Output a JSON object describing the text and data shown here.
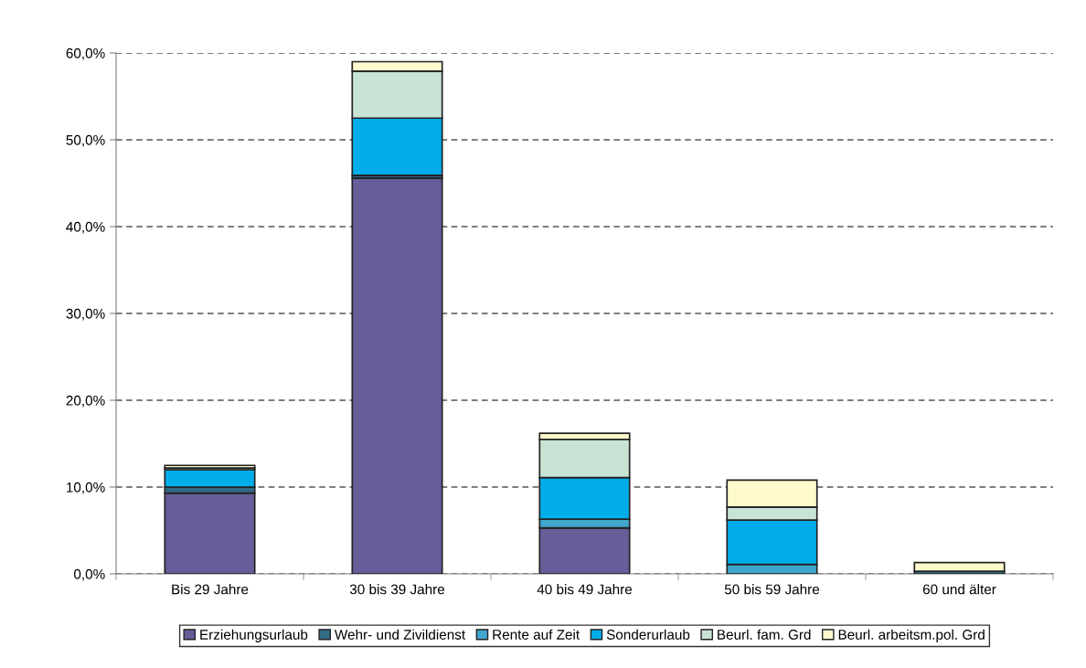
{
  "chart_data": {
    "type": "bar",
    "stacked": true,
    "categories": [
      "Bis 29 Jahre",
      "30 bis 39 Jahre",
      "40 bis 49 Jahre",
      "50 bis 59 Jahre",
      "60 und älter"
    ],
    "series": [
      {
        "name": "Erziehungsurlaub",
        "color": "#665e99",
        "values": [
          9.3,
          45.6,
          5.3,
          0,
          0
        ]
      },
      {
        "name": "Wehr- und Zivildienst",
        "color": "#336b87",
        "values": [
          0.7,
          0.3,
          0,
          null,
          0.3
        ]
      },
      {
        "name": "Rente auf Zeit",
        "color": "#3fa6cc",
        "values": [
          0,
          0,
          1.0,
          1.1,
          0
        ]
      },
      {
        "name": "Sonderurlaub",
        "color": "#00adea",
        "values": [
          2.0,
          6.6,
          4.8,
          5.1,
          0
        ]
      },
      {
        "name": "Beurl. fam. Grd",
        "color": "#c8e4d4",
        "values": [
          0.2,
          5.4,
          4.4,
          1.5,
          0
        ]
      },
      {
        "name": "Beurl. arbeitsm.pol. Grd",
        "color": "#fffacc",
        "values": [
          0.3,
          1.1,
          0.7,
          3.1,
          1.0
        ]
      }
    ],
    "ylim": [
      0,
      60
    ],
    "yticks": [
      {
        "value": 0,
        "label": "0,0%"
      },
      {
        "value": 10,
        "label": "10,0%"
      },
      {
        "value": 20,
        "label": "20,0%"
      },
      {
        "value": 30,
        "label": "30,0%"
      },
      {
        "value": 40,
        "label": "40,0%"
      },
      {
        "value": 50,
        "label": "50,0%"
      },
      {
        "value": 60,
        "label": "60,0%"
      }
    ],
    "grid": "y",
    "legend": "bottom"
  }
}
